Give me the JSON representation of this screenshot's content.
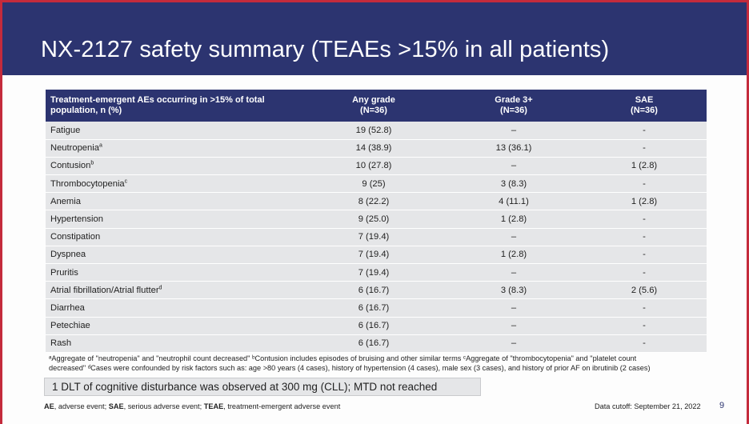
{
  "title": "NX-2127 safety summary (TEAEs >15% in all patients)",
  "table": {
    "headers": [
      {
        "line1": "Treatment-emergent AEs occurring in >15% of total",
        "line2": "population, n (%)"
      },
      {
        "line1": "Any grade",
        "line2": "(N=36)"
      },
      {
        "line1": "Grade 3+",
        "line2": "(N=36)"
      },
      {
        "line1": "SAE",
        "line2": "(N=36)"
      }
    ],
    "rows": [
      {
        "ae": "Fatigue",
        "sup": "",
        "any": "19 (52.8)",
        "g3": "–",
        "sae": "-"
      },
      {
        "ae": "Neutropenia",
        "sup": "a",
        "any": "14 (38.9)",
        "g3": "13 (36.1)",
        "sae": "-"
      },
      {
        "ae": "Contusion",
        "sup": "b",
        "any": "10 (27.8)",
        "g3": "–",
        "sae": "1 (2.8)"
      },
      {
        "ae": "Thrombocytopenia",
        "sup": "c",
        "any": "9 (25)",
        "g3": "3 (8.3)",
        "sae": "-"
      },
      {
        "ae": "Anemia",
        "sup": "",
        "any": "8 (22.2)",
        "g3": "4 (11.1)",
        "sae": "1 (2.8)"
      },
      {
        "ae": "Hypertension",
        "sup": "",
        "any": "9 (25.0)",
        "g3": "1 (2.8)",
        "sae": "-"
      },
      {
        "ae": "Constipation",
        "sup": "",
        "any": "7 (19.4)",
        "g3": "–",
        "sae": "-"
      },
      {
        "ae": "Dyspnea",
        "sup": "",
        "any": "7 (19.4)",
        "g3": "1 (2.8)",
        "sae": "-"
      },
      {
        "ae": "Pruritis",
        "sup": "",
        "any": "7 (19.4)",
        "g3": "–",
        "sae": "-"
      },
      {
        "ae": "Atrial fibrillation/Atrial flutter",
        "sup": "d",
        "any": "6 (16.7)",
        "g3": "3 (8.3)",
        "sae": "2 (5.6)"
      },
      {
        "ae": "Diarrhea",
        "sup": "",
        "any": "6 (16.7)",
        "g3": "–",
        "sae": "-"
      },
      {
        "ae": "Petechiae",
        "sup": "",
        "any": "6 (16.7)",
        "g3": "–",
        "sae": "-"
      },
      {
        "ae": "Rash",
        "sup": "",
        "any": "6 (16.7)",
        "g3": "–",
        "sae": "-"
      }
    ]
  },
  "footnote": {
    "line1": "ᵃAggregate of \"neutropenia\" and \"neutrophil count decreased\" ᵇContusion includes episodes of bruising and other similar terms  ᶜAggregate of \"thrombocytopenia\" and \"platelet count",
    "line2": "decreased\" ᵈCases were confounded by risk factors such as: age >80 years (4 cases), history of hypertension (4 cases), male sex (3 cases), and history of prior AF on ibrutinib (2 cases)"
  },
  "callout": "1 DLT of cognitive disturbance was observed at 300 mg (CLL); MTD not reached",
  "abbreviations": [
    {
      "abbr": "AE",
      "def": ", adverse event; "
    },
    {
      "abbr": "SAE",
      "def": ", serious adverse event; "
    },
    {
      "abbr": "TEAE",
      "def": ", treatment-emergent adverse event"
    }
  ],
  "data_cutoff": "Data cutoff: September 21, 2022",
  "page_number": "9",
  "colors": {
    "header_navy": "#2c3470",
    "accent_red": "#c42b3c",
    "row_gray": "#e5e6e8"
  }
}
